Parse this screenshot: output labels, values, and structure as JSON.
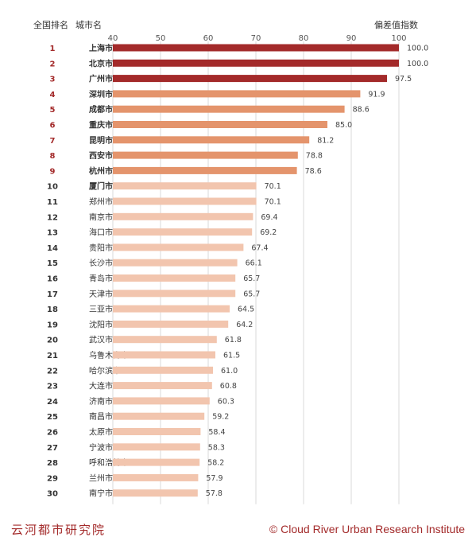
{
  "header": {
    "rank_label": "全国排名",
    "city_label": "城市名",
    "value_label": "偏差值指数"
  },
  "footer": {
    "left": "云河都市研究院",
    "right": "© Cloud River Urban Research Institute"
  },
  "colors": {
    "top3": "#a32a2a",
    "top4_9": "#e4946c",
    "rest": "#f2c5ae",
    "rank_top9": "#a32a2a",
    "rank_rest": "#333333"
  },
  "chart_data": {
    "type": "bar",
    "orientation": "horizontal",
    "xlim": [
      40,
      100
    ],
    "xticks": [
      40,
      50,
      60,
      70,
      80,
      90,
      100
    ],
    "grid": true,
    "categories": [
      "上海市",
      "北京市",
      "广州市",
      "深圳市",
      "成都市",
      "重庆市",
      "昆明市",
      "西安市",
      "杭州市",
      "厦门市",
      "郑州市",
      "南京市",
      "海口市",
      "贵阳市",
      "长沙市",
      "青岛市",
      "天津市",
      "三亚市",
      "沈阳市",
      "武汉市",
      "乌鲁木齐市",
      "哈尔滨市",
      "大连市",
      "济南市",
      "南昌市",
      "太原市",
      "宁波市",
      "呼和浩特市",
      "兰州市",
      "南宁市"
    ],
    "ranks": [
      1,
      2,
      3,
      4,
      5,
      6,
      7,
      8,
      9,
      10,
      11,
      12,
      13,
      14,
      15,
      16,
      17,
      18,
      19,
      20,
      21,
      22,
      23,
      24,
      25,
      26,
      27,
      28,
      29,
      30
    ],
    "values": [
      100.0,
      100.0,
      97.5,
      91.9,
      88.6,
      85.0,
      81.2,
      78.8,
      78.6,
      70.1,
      70.1,
      69.4,
      69.2,
      67.4,
      66.1,
      65.7,
      65.7,
      64.5,
      64.2,
      61.8,
      61.5,
      61.0,
      60.8,
      60.3,
      59.2,
      58.4,
      58.3,
      58.2,
      57.9,
      57.8
    ],
    "labels": [
      "100.0",
      "100.0",
      "97.5",
      "91.9",
      "88.6",
      "85.0",
      "81.2",
      "78.8",
      "78.6",
      "70.1",
      "70.1",
      "69.4",
      "69.2",
      "67.4",
      "66.1",
      "65.7",
      "65.7",
      "64.5",
      "64.2",
      "61.8",
      "61.5",
      "61.0",
      "60.8",
      "60.3",
      "59.2",
      "58.4",
      "58.3",
      "58.2",
      "57.9",
      "57.8"
    ]
  }
}
